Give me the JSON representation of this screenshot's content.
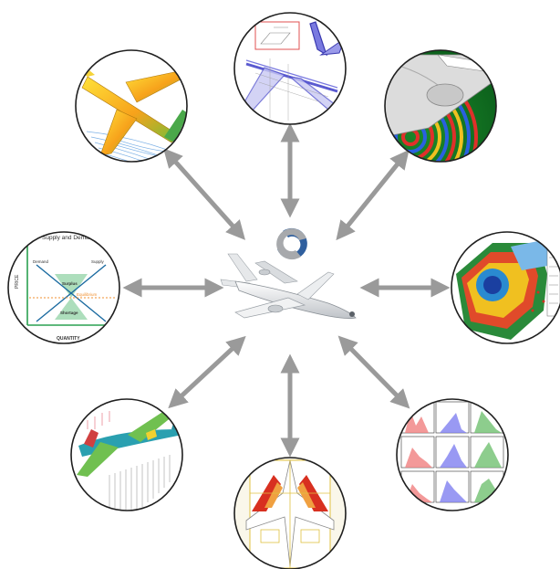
{
  "center": {
    "logo_icon": "swirl-logo-icon",
    "image_icon": "airplane-icon",
    "accent_blue": "#2f5f9e",
    "accent_grey": "#a7a9ac"
  },
  "arrow_color": "#9a9a9a",
  "circle_border_color": "#1f1f1f",
  "satellites": [
    {
      "id": "cfd-wing-flow",
      "icon": "airplane-cfd-streamlines-icon"
    },
    {
      "id": "cad-wireframe",
      "icon": "airplane-wireframe-icon"
    },
    {
      "id": "acoustics-engine",
      "icon": "engine-acoustic-wave-icon"
    },
    {
      "id": "engine-fem",
      "icon": "engine-stress-mesh-icon"
    },
    {
      "id": "spectra-plots",
      "icon": "spectrum-plot-grid-icon"
    },
    {
      "id": "planform-drawing",
      "icon": "aircraft-planform-drawing-icon"
    },
    {
      "id": "structural-loads",
      "icon": "airplane-structural-loads-icon"
    },
    {
      "id": "supply-demand",
      "icon": "supply-demand-chart-icon",
      "title": "Supply and Demand",
      "xlabel": "QUANTITY",
      "ylabel": "PRICE",
      "labels": {
        "demand": "Demand",
        "supply": "Supply",
        "surplus": "Surplus",
        "equilibrium": "Equilibrium",
        "shortage": "Shortage"
      }
    }
  ]
}
